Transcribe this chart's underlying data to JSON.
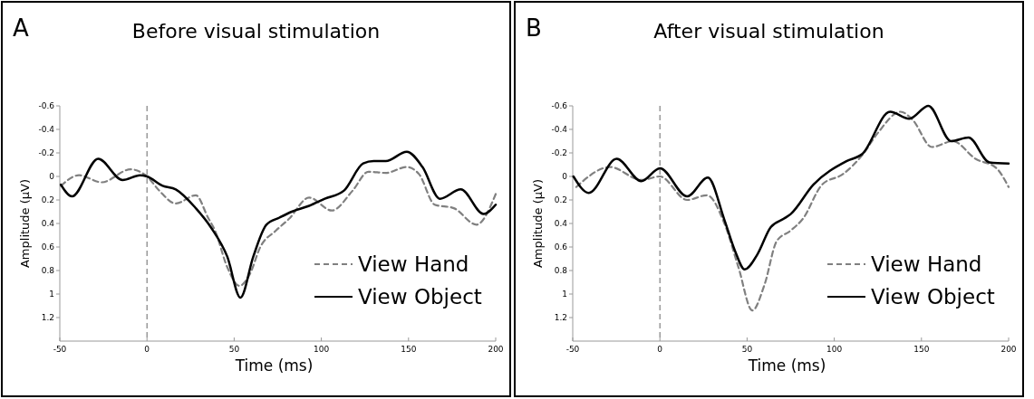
{
  "chart_data": [
    {
      "type": "line",
      "title": "Before visual stimulation",
      "annotations": [
        "A"
      ],
      "xlabel": "Time (ms)",
      "ylabel": "Amplitude (µV)",
      "xlim": [
        -50,
        200
      ],
      "xticks": [
        -50,
        0,
        50,
        100,
        150,
        200
      ],
      "ylim": [
        1.4,
        -0.6
      ],
      "yticks": [
        -0.6,
        -0.4,
        -0.2,
        0,
        0.2,
        0.4,
        0.6,
        0.8,
        1,
        1.2
      ],
      "legend": "bottom right",
      "grid": false,
      "ref_lines": [
        {
          "axis": "x",
          "value": 0,
          "color": "#808080",
          "line_style": "dashed"
        }
      ],
      "series": [
        {
          "name": "View Hand",
          "color": "#808080",
          "line_style": "dashed",
          "x": [
            -49.4,
            -39,
            -26,
            -9.5,
            0,
            7,
            16.5,
            28,
            35,
            39,
            46,
            53,
            59,
            65,
            74,
            81.5,
            93,
            106,
            118,
            127,
            137,
            149,
            156,
            165,
            176,
            189,
            200
          ],
          "values": [
            0.08,
            -0.01,
            0.05,
            -0.06,
            0,
            0.12,
            0.23,
            0.16,
            0.35,
            0.46,
            0.77,
            0.93,
            0.83,
            0.6,
            0.46,
            0.36,
            0.18,
            0.29,
            0.12,
            -0.04,
            -0.03,
            -0.08,
            -0.02,
            0.24,
            0.27,
            0.41,
            0.15
          ]
        },
        {
          "name": "View Object",
          "color": "#000000",
          "line_style": "solid",
          "x": [
            -49.4,
            -43,
            -28,
            -14,
            -4,
            0,
            9,
            16.5,
            28,
            37,
            46,
            53.6,
            61,
            68.5,
            76,
            83,
            93,
            102,
            113,
            124,
            130,
            137,
            149,
            158,
            168,
            180,
            193,
            200
          ],
          "values": [
            0.07,
            0.17,
            -0.15,
            0.03,
            -0.01,
            0,
            0.08,
            0.11,
            0.27,
            0.44,
            0.68,
            1.03,
            0.68,
            0.41,
            0.35,
            0.3,
            0.25,
            0.19,
            0.12,
            -0.11,
            -0.13,
            -0.13,
            -0.21,
            -0.08,
            0.19,
            0.11,
            0.32,
            0.24
          ]
        }
      ]
    },
    {
      "type": "line",
      "title": "After visual stimulation",
      "annotations": [
        "B"
      ],
      "xlabel": "Time (ms)",
      "ylabel": "Amplitude (µV)",
      "xlim": [
        -50,
        200
      ],
      "xticks": [
        -50,
        0,
        50,
        100,
        150,
        200
      ],
      "ylim": [
        1.4,
        -0.6
      ],
      "yticks": [
        -0.6,
        -0.4,
        -0.2,
        0,
        0.2,
        0.4,
        0.6,
        0.8,
        1,
        1.2
      ],
      "legend": "bottom right",
      "grid": false,
      "ref_lines": [
        {
          "axis": "x",
          "value": 0,
          "color": "#808080",
          "line_style": "dashed"
        }
      ],
      "series": [
        {
          "name": "View Hand",
          "color": "#808080",
          "line_style": "dashed",
          "x": [
            -48,
            -28.6,
            -10.7,
            0,
            15.6,
            27,
            37,
            45,
            53,
            60,
            67,
            75,
            82,
            93,
            105,
            116,
            125,
            138,
            145,
            156,
            168,
            181,
            193,
            200
          ],
          "values": [
            0.09,
            -0.08,
            0.03,
            0,
            0.2,
            0.16,
            0.4,
            0.77,
            1.14,
            0.92,
            0.55,
            0.46,
            0.36,
            0.07,
            -0.02,
            -0.18,
            -0.37,
            -0.55,
            -0.48,
            -0.25,
            -0.3,
            -0.15,
            -0.07,
            0.09
          ]
        },
        {
          "name": "View Object",
          "color": "#000000",
          "line_style": "solid",
          "x": [
            -49.6,
            -40.8,
            -24.8,
            -10.7,
            0,
            15.6,
            27.5,
            37,
            43,
            48.6,
            56,
            63.6,
            71,
            75,
            88,
            107,
            116,
            132,
            143,
            154,
            167,
            177,
            189,
            200
          ],
          "values": [
            0,
            0.14,
            -0.15,
            0.04,
            -0.07,
            0.17,
            0.01,
            0.37,
            0.63,
            0.79,
            0.66,
            0.43,
            0.36,
            0.32,
            0.07,
            -0.13,
            -0.19,
            -0.55,
            -0.49,
            -0.6,
            -0.3,
            -0.33,
            -0.12,
            -0.11
          ]
        }
      ]
    }
  ]
}
